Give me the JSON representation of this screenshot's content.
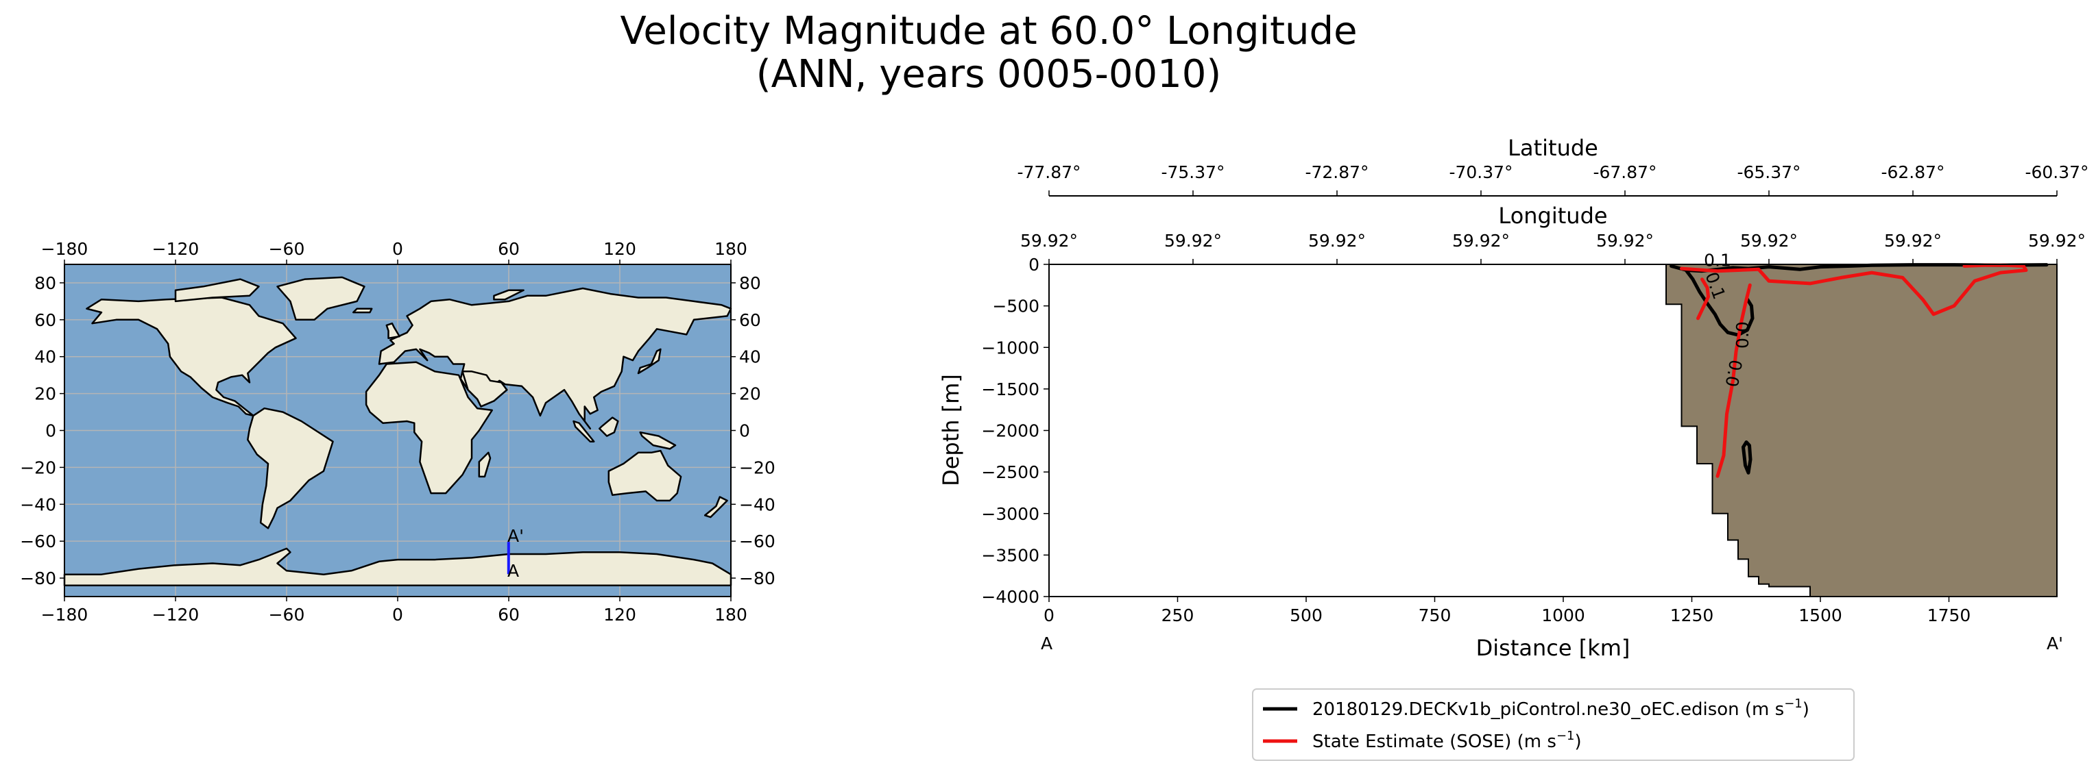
{
  "title": {
    "line1": "Velocity Magnitude at 60.0° Longitude",
    "line2": "(ANN, years 0005-0010)"
  },
  "colors": {
    "ocean": "#7aa5cc",
    "land": "#efecd9",
    "coast": "#000000",
    "grid": "#b5b5b5",
    "transect": "#1a1aff",
    "bathymetry": "#8d7f67",
    "model": "#000000",
    "obs": "#ee1111"
  },
  "chart_data": [
    {
      "type": "map",
      "projection": "PlateCarree",
      "xlim": [
        -180,
        180
      ],
      "ylim": [
        -90,
        90
      ],
      "xticks": [
        -180,
        -120,
        -60,
        0,
        60,
        120,
        180
      ],
      "yticks": [
        80,
        60,
        40,
        20,
        0,
        -20,
        -40,
        -60,
        -80
      ],
      "xtick_labels": [
        "−180",
        "−120",
        "−60",
        "0",
        "60",
        "120",
        "180"
      ],
      "ytick_labels": [
        "80",
        "60",
        "40",
        "20",
        "0",
        "−20",
        "−40",
        "−60",
        "−80"
      ],
      "grid": true,
      "transect": {
        "lon": 59.92,
        "lat_start": -77.87,
        "lat_end": -60.37,
        "start_label": "A",
        "end_label": "A'"
      }
    },
    {
      "type": "line",
      "xlabel": "Distance [km]",
      "ylabel": "Depth [m]",
      "xlim": [
        0,
        1960
      ],
      "ylim": [
        -4000,
        0
      ],
      "xticks": [
        0,
        250,
        500,
        750,
        1000,
        1250,
        1500,
        1750
      ],
      "xtick_labels": [
        "0",
        "250",
        "500",
        "750",
        "1000",
        "1250",
        "1500",
        "1750"
      ],
      "yticks": [
        0,
        -500,
        -1000,
        -1500,
        -2000,
        -2500,
        -3000,
        -3500,
        -4000
      ],
      "ytick_labels": [
        "0",
        "−500",
        "−1000",
        "−1500",
        "−2000",
        "−2500",
        "−3000",
        "−3500",
        "−4000"
      ],
      "start_label": "A",
      "end_label": "A'",
      "top_axes": [
        {
          "label": "Latitude",
          "tick_labels": [
            "-77.87°",
            "-75.37°",
            "-72.87°",
            "-70.37°",
            "-67.87°",
            "-65.37°",
            "-62.87°",
            "-60.37°"
          ]
        },
        {
          "label": "Longitude",
          "tick_labels": [
            "59.92°",
            "59.92°",
            "59.92°",
            "59.92°",
            "59.92°",
            "59.92°",
            "59.92°",
            "59.92°"
          ]
        }
      ],
      "bathymetry": {
        "distance": [
          0,
          1200,
          1200,
          1230,
          1230,
          1260,
          1260,
          1290,
          1290,
          1320,
          1320,
          1340,
          1340,
          1360,
          1360,
          1380,
          1380,
          1400,
          1400,
          1480,
          1480,
          1960,
          1960
        ],
        "depth": [
          0,
          0,
          -480,
          -480,
          -1950,
          -1950,
          -2400,
          -2400,
          -3000,
          -3000,
          -3320,
          -3320,
          -3550,
          -3550,
          -3760,
          -3760,
          -3850,
          -3850,
          -3880,
          -3880,
          -4000,
          -4000,
          0
        ]
      },
      "series": [
        {
          "name": "20180129.DECKv1b_piControl.ne30_oEC.edison (m s$^{-1}$)",
          "legend_label": "20180129.DECKv1b_piControl.ne30_oEC.edison (m s",
          "color": "#000000",
          "contour_label": "0.1",
          "contours": [
            {
              "distance": [
                1210,
                1240,
                1270,
                1300,
                1330,
                1360,
                1400,
                1460,
                1500,
                1560,
                1600,
                1680,
                1760,
                1850,
                1940
              ],
              "depth": [
                -20,
                -70,
                -80,
                -60,
                -40,
                -50,
                -30,
                -60,
                -30,
                -20,
                -10,
                -5,
                -5,
                -10,
                -5
              ]
            },
            {
              "distance": [
                1240,
                1252,
                1265,
                1280,
                1295,
                1305,
                1320,
                1340,
                1358,
                1368,
                1366,
                1358
              ],
              "depth": [
                -80,
                -180,
                -330,
                -470,
                -600,
                -720,
                -820,
                -850,
                -790,
                -650,
                -500,
                -420
              ]
            },
            {
              "distance": [
                1350,
                1356,
                1362,
                1364,
                1360,
                1354,
                1350
              ],
              "depth": [
                -2200,
                -2140,
                -2180,
                -2350,
                -2510,
                -2420,
                -2200
              ]
            }
          ]
        },
        {
          "name": "State Estimate (SOSE) (m s$^{-1}$)",
          "legend_label": "State Estimate (SOSE) (m s",
          "color": "#ee1111",
          "contour_labels": [
            "0.1",
            "0.0",
            "0.0"
          ],
          "contours": [
            {
              "distance": [
                1230,
                1300,
                1380,
                1400,
                1480,
                1540,
                1600,
                1660,
                1700,
                1720,
                1760,
                1800,
                1850,
                1900,
                1895,
                1860,
                1820,
                1780
              ],
              "depth": [
                -50,
                -80,
                -60,
                -200,
                -230,
                -160,
                -100,
                -160,
                -430,
                -600,
                -500,
                -200,
                -100,
                -70,
                -20,
                -10,
                -10,
                -20
              ]
            },
            {
              "distance": [
                1262,
                1272,
                1282,
                1280,
                1270
              ],
              "depth": [
                -650,
                -520,
                -390,
                -280,
                -180
              ]
            },
            {
              "distance": [
                1300,
                1312,
                1318,
                1330,
                1336,
                1346,
                1355,
                1363
              ],
              "depth": [
                -2550,
                -2300,
                -1800,
                -1400,
                -1050,
                -700,
                -450,
                -250
              ]
            }
          ]
        }
      ]
    }
  ]
}
